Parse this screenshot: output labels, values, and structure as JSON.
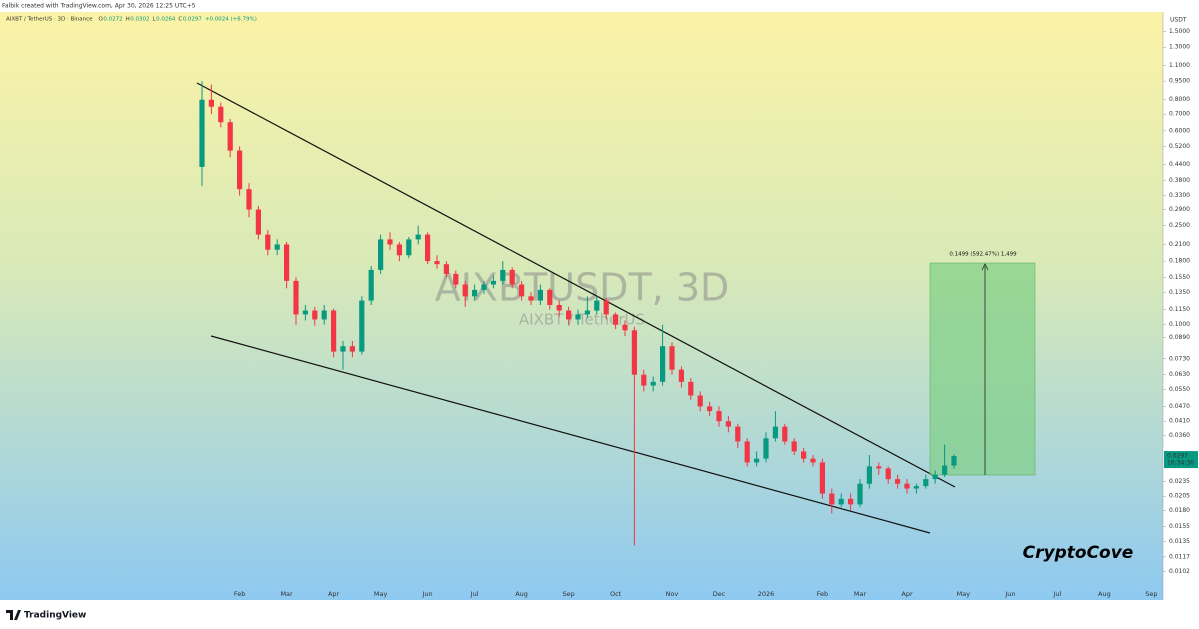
{
  "header": {
    "credit": "Falbik created with TradingView.com, Apr 30, 2026 12:25 UTC+5",
    "symbol_info": "AIXBT / TetherUS · 3D · Binance",
    "ohlc_labels": [
      "O",
      "H",
      "L",
      "C"
    ],
    "change": "+0.0024 (+8.79%)"
  },
  "watermark": {
    "symbol": "AIXBTUSDT, 3D",
    "name": "AIXBT / TetherUS"
  },
  "signature": "CryptoCove",
  "logo": "TradingView",
  "measure_label": "0.1499 (592.47%) 1,499",
  "countdown": "16:34:36",
  "chart_data": {
    "type": "candlestick",
    "y_unit": "USDT",
    "log_scale": true,
    "up_color": "#089981",
    "down_color": "#f23645",
    "categories": [
      null,
      null,
      null,
      null,
      "Feb",
      null,
      null,
      null,
      null,
      "Mar",
      null,
      null,
      null,
      null,
      "Apr",
      null,
      null,
      null,
      null,
      "May",
      null,
      null,
      null,
      null,
      "Jun",
      null,
      null,
      null,
      null,
      "Jul",
      null,
      null,
      null,
      null,
      "Aug",
      null,
      null,
      null,
      null,
      "Sep",
      null,
      null,
      null,
      null,
      "Oct",
      null,
      null,
      null,
      null,
      null,
      "Nov",
      null,
      null,
      null,
      null,
      "Dec",
      null,
      null,
      null,
      null,
      "2026",
      null,
      null,
      null,
      null,
      null,
      "Feb",
      null,
      null,
      null,
      "Mar",
      null,
      null,
      null,
      null,
      "Apr",
      null,
      null,
      null,
      null,
      null,
      "May",
      null,
      null,
      null,
      null,
      "Jun",
      null,
      null,
      null,
      null,
      "Jul",
      null,
      null,
      null,
      null,
      "Aug",
      null,
      null,
      null,
      null,
      "Sep"
    ],
    "open": [
      0.43,
      0.8,
      0.75,
      0.65,
      0.5,
      0.35,
      0.29,
      0.23,
      0.2,
      0.21,
      0.15,
      0.11,
      0.114,
      0.105,
      0.114,
      0.078,
      0.082,
      0.078,
      0.125,
      0.166,
      0.22,
      0.21,
      0.19,
      0.22,
      0.23,
      0.18,
      0.175,
      0.16,
      0.145,
      0.13,
      0.138,
      0.145,
      0.15,
      0.166,
      0.145,
      0.13,
      0.125,
      0.138,
      0.12,
      0.114,
      0.105,
      0.11,
      0.114,
      0.125,
      0.11,
      0.1,
      0.095,
      0.063,
      0.057,
      0.059,
      0.082,
      0.066,
      0.059,
      0.052,
      0.047,
      0.045,
      0.041,
      0.039,
      0.034,
      0.028,
      0.029,
      0.035,
      0.039,
      0.034,
      0.031,
      0.029,
      0.028,
      0.021,
      0.019,
      0.02,
      0.019,
      0.023,
      0.027,
      0.0265,
      0.024,
      0.023,
      0.022,
      0.0225,
      0.024,
      0.025,
      0.0272,
      null,
      null,
      null,
      null,
      null,
      null,
      null,
      null,
      null,
      null,
      null,
      null,
      null,
      null,
      null,
      null,
      null,
      null,
      null,
      null,
      null
    ],
    "high": [
      0.95,
      0.92,
      0.78,
      0.67,
      0.52,
      0.37,
      0.3,
      0.24,
      0.22,
      0.215,
      0.155,
      0.12,
      0.118,
      0.12,
      0.116,
      0.086,
      0.086,
      0.13,
      0.172,
      0.23,
      0.235,
      0.215,
      0.225,
      0.25,
      0.235,
      0.19,
      0.18,
      0.165,
      0.15,
      0.145,
      0.15,
      0.158,
      0.18,
      0.17,
      0.15,
      0.135,
      0.145,
      0.14,
      0.125,
      0.118,
      0.115,
      0.13,
      0.13,
      0.128,
      0.112,
      0.104,
      0.098,
      0.066,
      0.062,
      0.1,
      0.085,
      0.068,
      0.061,
      0.054,
      0.049,
      0.047,
      0.043,
      0.04,
      0.035,
      0.031,
      0.037,
      0.045,
      0.04,
      0.035,
      0.032,
      0.03,
      0.029,
      0.022,
      0.021,
      0.021,
      0.024,
      0.03,
      0.028,
      0.027,
      0.025,
      0.024,
      0.023,
      0.025,
      0.026,
      0.033,
      0.0302,
      null,
      null,
      null,
      null,
      null,
      null,
      null,
      null,
      null,
      null,
      null,
      null,
      null,
      null,
      null,
      null,
      null,
      null,
      null,
      null,
      null
    ],
    "low": [
      0.36,
      0.7,
      0.62,
      0.47,
      0.33,
      0.27,
      0.22,
      0.19,
      0.19,
      0.14,
      0.1,
      0.104,
      0.099,
      0.1,
      0.074,
      0.066,
      0.074,
      0.076,
      0.12,
      0.16,
      0.2,
      0.18,
      0.185,
      0.21,
      0.175,
      0.168,
      0.155,
      0.14,
      0.118,
      0.125,
      0.133,
      0.14,
      0.145,
      0.14,
      0.125,
      0.12,
      0.12,
      0.115,
      0.108,
      0.1,
      0.1,
      0.106,
      0.11,
      0.105,
      0.096,
      0.09,
      0.013,
      0.054,
      0.054,
      0.057,
      0.063,
      0.056,
      0.05,
      0.045,
      0.043,
      0.039,
      0.037,
      0.032,
      0.027,
      0.027,
      0.028,
      0.034,
      0.033,
      0.03,
      0.028,
      0.027,
      0.02,
      0.0175,
      0.0185,
      0.018,
      0.0185,
      0.022,
      0.025,
      0.023,
      0.022,
      0.021,
      0.021,
      0.022,
      0.023,
      0.0245,
      0.0264,
      null,
      null,
      null,
      null,
      null,
      null,
      null,
      null,
      null,
      null,
      null,
      null,
      null,
      null,
      null,
      null,
      null,
      null,
      null,
      null,
      null
    ],
    "close": [
      0.8,
      0.75,
      0.65,
      0.5,
      0.35,
      0.29,
      0.23,
      0.2,
      0.21,
      0.15,
      0.11,
      0.114,
      0.105,
      0.114,
      0.078,
      0.082,
      0.078,
      0.125,
      0.166,
      0.22,
      0.21,
      0.19,
      0.22,
      0.23,
      0.18,
      0.175,
      0.16,
      0.145,
      0.13,
      0.138,
      0.145,
      0.15,
      0.166,
      0.145,
      0.13,
      0.125,
      0.138,
      0.12,
      0.114,
      0.105,
      0.11,
      0.114,
      0.125,
      0.11,
      0.1,
      0.095,
      0.063,
      0.057,
      0.059,
      0.082,
      0.066,
      0.059,
      0.052,
      0.047,
      0.045,
      0.041,
      0.039,
      0.034,
      0.028,
      0.029,
      0.035,
      0.039,
      0.034,
      0.031,
      0.029,
      0.028,
      0.021,
      0.019,
      0.02,
      0.019,
      0.023,
      0.027,
      0.0265,
      0.024,
      0.023,
      0.022,
      0.0225,
      0.024,
      0.025,
      0.0272,
      0.0297,
      null,
      null,
      null,
      null,
      null,
      null,
      null,
      null,
      null,
      null,
      null,
      null,
      null,
      null,
      null,
      null,
      null,
      null,
      null,
      null,
      null
    ],
    "ylim": [
      0.008,
      1.8
    ],
    "yticks": [
      {
        "value": 1.5,
        "label": "1.5000"
      },
      {
        "value": 1.3,
        "label": "1.3000"
      },
      {
        "value": 1.1,
        "label": "1.1000"
      },
      {
        "value": 0.95,
        "label": "0.9500"
      },
      {
        "value": 0.8,
        "label": "0.8000"
      },
      {
        "value": 0.7,
        "label": "0.7000"
      },
      {
        "value": 0.6,
        "label": "0.6000"
      },
      {
        "value": 0.52,
        "label": "0.5200"
      },
      {
        "value": 0.44,
        "label": "0.4400"
      },
      {
        "value": 0.38,
        "label": "0.3800"
      },
      {
        "value": 0.33,
        "label": "0.3300"
      },
      {
        "value": 0.29,
        "label": "0.2900"
      },
      {
        "value": 0.25,
        "label": "0.2500"
      },
      {
        "value": 0.21,
        "label": "0.2100"
      },
      {
        "value": 0.18,
        "label": "0.1800"
      },
      {
        "value": 0.155,
        "label": "0.1550"
      },
      {
        "value": 0.135,
        "label": "0.1350"
      },
      {
        "value": 0.115,
        "label": "0.1150"
      },
      {
        "value": 0.1,
        "label": "0.1000"
      },
      {
        "value": 0.089,
        "label": "0.0890"
      },
      {
        "value": 0.073,
        "label": "0.0730"
      },
      {
        "value": 0.063,
        "label": "0.0630"
      },
      {
        "value": 0.055,
        "label": "0.0550"
      },
      {
        "value": 0.047,
        "label": "0.0470"
      },
      {
        "value": 0.041,
        "label": "0.0410"
      },
      {
        "value": 0.036,
        "label": "0.0360"
      },
      {
        "value": 0.0235,
        "label": "0.0235"
      },
      {
        "value": 0.0205,
        "label": "0.0205"
      },
      {
        "value": 0.018,
        "label": "0.0180"
      },
      {
        "value": 0.0155,
        "label": "0.0155"
      },
      {
        "value": 0.0135,
        "label": "0.0135"
      },
      {
        "value": 0.0117,
        "label": "0.0117"
      },
      {
        "value": 0.0102,
        "label": "0.0102"
      }
    ]
  }
}
